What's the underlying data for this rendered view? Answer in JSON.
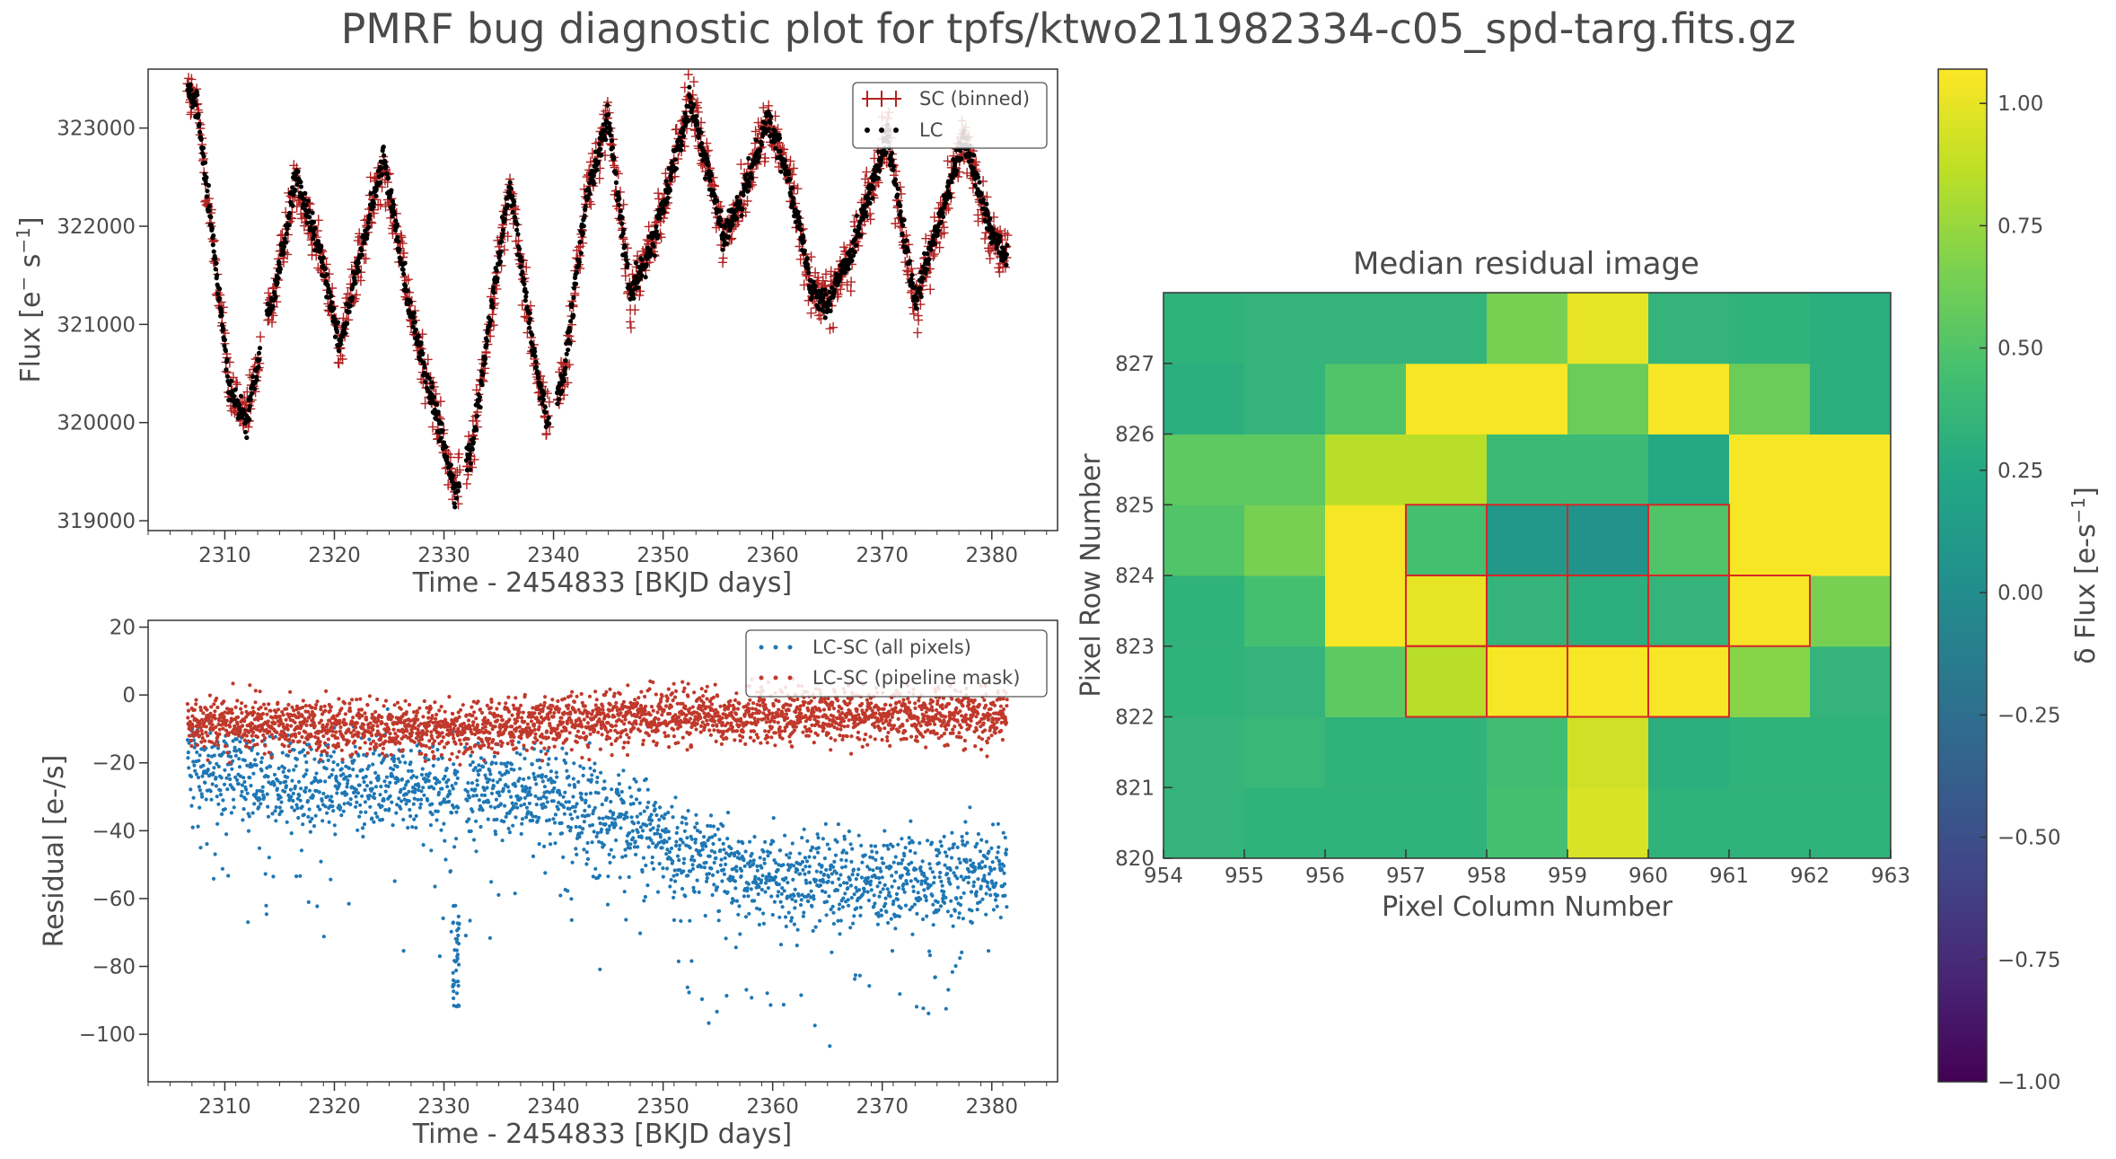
{
  "figure": {
    "suptitle": "PMRF bug diagnostic plot for tpfs/ktwo211982334-c05_spd-targ.fits.gz"
  },
  "colors": {
    "sc": "#b22222",
    "lc": "#000000",
    "all_pixels": "#1f77b4",
    "pipeline_mask": "#c0392b",
    "aperture": "#d62728",
    "text": "#4a4a4a"
  },
  "chart_data": [
    {
      "id": "lightcurve",
      "type": "scatter",
      "title": "",
      "xlabel": "Time - 2454833 [BKJD days]",
      "ylabel": "Flux [e$^{-}$ s$^{-1}$]",
      "ylabel_parts": {
        "base": "Flux [e",
        "sup1": "−",
        "mid": " s",
        "sup2": "−1",
        "end": "]"
      },
      "xlim": [
        2303,
        2386
      ],
      "ylim": [
        318900,
        323600
      ],
      "xticks": [
        2310,
        2320,
        2330,
        2340,
        2350,
        2360,
        2370,
        2380
      ],
      "yticks": [
        319000,
        320000,
        321000,
        322000,
        323000
      ],
      "legend": {
        "position": "top-right",
        "entries": [
          "SC (binned)",
          "LC"
        ]
      },
      "grid": false,
      "x_range": [
        2306.6,
        2381.4
      ],
      "gaps": [
        [
          2313.2,
          2313.8
        ],
        [
          2331.4,
          2332.0
        ],
        [
          2339.6,
          2340.3
        ]
      ],
      "trend_knots": {
        "x": [
          2306.6,
          2307.5,
          2310.5,
          2312.0,
          2313.5,
          2314.5,
          2316.5,
          2319.0,
          2320.5,
          2324.5,
          2327.0,
          2331.0,
          2332.5,
          2334.5,
          2336.0,
          2338.5,
          2339.5,
          2341.0,
          2343.0,
          2345.0,
          2347.0,
          2349.0,
          2352.5,
          2355.5,
          2357.0,
          2359.5,
          2361.5,
          2363.5,
          2365.0,
          2367.0,
          2370.5,
          2373.0,
          2374.0,
          2377.5,
          2380.0,
          2381.4
        ],
        "y": [
          323350,
          323200,
          320300,
          320000,
          320900,
          321300,
          322500,
          321600,
          320800,
          322700,
          321100,
          319300,
          319700,
          321300,
          322400,
          320500,
          320000,
          320500,
          322300,
          323100,
          321300,
          321800,
          323300,
          321900,
          322200,
          323100,
          322500,
          321400,
          321200,
          321700,
          322900,
          321200,
          321600,
          322900,
          321900,
          321700
        ]
      },
      "series": [
        {
          "name": "SC (binned)",
          "marker": "plus",
          "color": "#b22222",
          "scatter": 140
        },
        {
          "name": "LC",
          "marker": "dot",
          "color": "#000000",
          "scatter": 70
        }
      ]
    },
    {
      "id": "residuals",
      "type": "scatter",
      "title": "",
      "xlabel": "Time - 2454833 [BKJD days]",
      "ylabel": "Residual [e-/s]",
      "xlim": [
        2303,
        2386
      ],
      "ylim": [
        -114,
        22
      ],
      "xticks": [
        2310,
        2320,
        2330,
        2340,
        2350,
        2360,
        2370,
        2380
      ],
      "yticks": [
        20,
        0,
        -20,
        -40,
        -60,
        -80,
        -100
      ],
      "ytick_labels": [
        "20",
        "0",
        "−20",
        "−40",
        "−60",
        "−80",
        "−100"
      ],
      "legend": {
        "position": "top-right",
        "entries": [
          "LC-SC (all pixels)",
          "LC-SC (pipeline mask)"
        ]
      },
      "grid": false,
      "series": [
        {
          "name": "LC-SC (all pixels)",
          "color": "#1f77b4",
          "trend_x": [
            2306.6,
            2315,
            2330,
            2340,
            2346,
            2356,
            2365,
            2375,
            2381.4
          ],
          "trend_y": [
            -20,
            -27,
            -27,
            -30,
            -37,
            -52,
            -55,
            -54,
            -53
          ],
          "spread": 7
        },
        {
          "name": "LC-SC (pipeline mask)",
          "color": "#c0392b",
          "trend_x": [
            2306.6,
            2330,
            2350,
            2381.4
          ],
          "trend_y": [
            -8,
            -10,
            -6,
            -6
          ],
          "spread": 4
        }
      ],
      "dip": {
        "x_range": [
          2330.8,
          2331.4
        ],
        "y_range": [
          -92,
          -62
        ]
      }
    },
    {
      "id": "residual-image",
      "type": "heatmap",
      "title": "Median residual image",
      "xlabel": "Pixel Column Number",
      "ylabel": "Pixel Row Number",
      "xticks": [
        954,
        955,
        956,
        957,
        958,
        959,
        960,
        961,
        962,
        963
      ],
      "yticks": [
        820,
        821,
        822,
        823,
        824,
        825,
        826,
        827
      ],
      "col_start": 954,
      "row_start": 820,
      "vmin": -1.0,
      "vmax": 1.07,
      "colormap": "viridis",
      "grid": false,
      "values_bottom_to_top": [
        [
          0.35,
          0.33,
          0.33,
          0.33,
          0.45,
          0.95,
          0.33,
          0.33,
          0.33
        ],
        [
          0.35,
          0.38,
          0.33,
          0.33,
          0.43,
          0.92,
          0.3,
          0.33,
          0.33
        ],
        [
          0.33,
          0.35,
          0.55,
          0.85,
          1.05,
          1.05,
          1.05,
          0.7,
          0.35
        ],
        [
          0.33,
          0.45,
          1.05,
          1.0,
          0.35,
          0.3,
          0.35,
          1.05,
          0.65
        ],
        [
          0.5,
          0.65,
          1.05,
          0.45,
          0.1,
          0.05,
          0.5,
          1.05,
          1.05
        ],
        [
          0.55,
          0.55,
          0.85,
          0.85,
          0.4,
          0.4,
          0.25,
          1.05,
          1.05
        ],
        [
          0.3,
          0.35,
          0.5,
          1.05,
          1.05,
          0.6,
          1.05,
          0.6,
          0.3
        ],
        [
          0.33,
          0.35,
          0.35,
          0.35,
          0.65,
          1.0,
          0.35,
          0.33,
          0.3
        ]
      ],
      "aperture_pixels": [
        [
          957,
          824
        ],
        [
          958,
          824
        ],
        [
          959,
          824
        ],
        [
          960,
          824
        ],
        [
          957,
          823
        ],
        [
          958,
          823
        ],
        [
          959,
          823
        ],
        [
          960,
          823
        ],
        [
          961,
          823
        ],
        [
          957,
          822
        ],
        [
          958,
          822
        ],
        [
          959,
          822
        ],
        [
          960,
          822
        ]
      ]
    },
    {
      "id": "colorbar",
      "type": "heatmap",
      "label": "$\\delta$ Flux [e-s$^{-1}$]",
      "label_parts": {
        "base": "δ Flux [e-s",
        "sup": "−1",
        "end": "]"
      },
      "vmin": -1.0,
      "vmax": 1.07,
      "ticks": [
        1.0,
        0.75,
        0.5,
        0.25,
        0.0,
        -0.25,
        -0.5,
        -0.75,
        -1.0
      ],
      "tick_labels": [
        "1.00",
        "0.75",
        "0.50",
        "0.25",
        "0.00",
        "−0.25",
        "−0.50",
        "−0.75",
        "−1.00"
      ]
    }
  ]
}
